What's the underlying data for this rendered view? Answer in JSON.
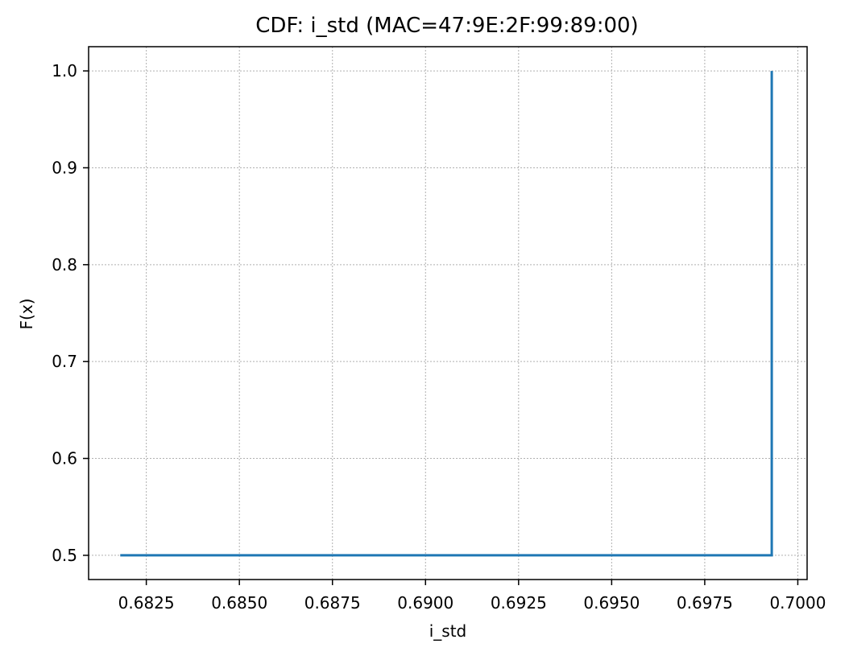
{
  "chart_data": {
    "type": "line",
    "title": "CDF: i_std (MAC=47:9E:2F:99:89:00)",
    "xlabel": "i_std",
    "ylabel": "F(x)",
    "xlim": [
      0.68095,
      0.70025
    ],
    "ylim": [
      0.475,
      1.025
    ],
    "grid": true,
    "x_ticks": [
      0.6825,
      0.685,
      0.6875,
      0.69,
      0.6925,
      0.695,
      0.6975,
      0.7
    ],
    "x_tick_labels": [
      "0.6825",
      "0.6850",
      "0.6875",
      "0.6900",
      "0.6925",
      "0.6950",
      "0.6975",
      "0.7000"
    ],
    "y_ticks": [
      0.5,
      0.6,
      0.7,
      0.8,
      0.9,
      1.0
    ],
    "y_tick_labels": [
      "0.5",
      "0.6",
      "0.7",
      "0.8",
      "0.9",
      "1.0"
    ],
    "series": [
      {
        "color": "#1f77b4",
        "drawstyle": "steps-post",
        "x": [
          0.6818,
          0.6993,
          0.6993
        ],
        "y": [
          0.5,
          0.5,
          1.0
        ]
      }
    ]
  }
}
